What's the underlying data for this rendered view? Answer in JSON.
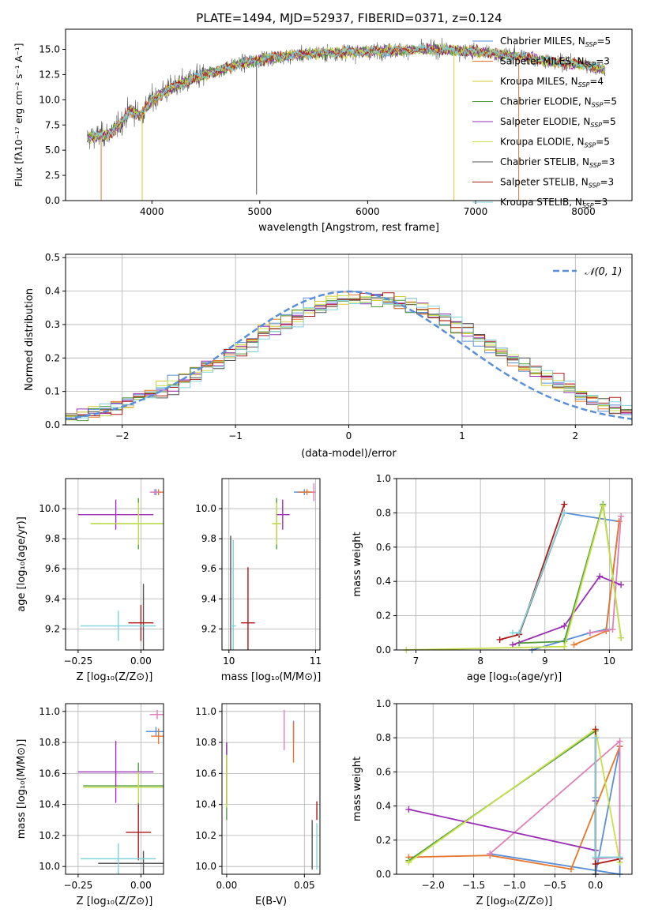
{
  "title": "PLATE=1494, MJD=52937, FIBERID=0371, z=0.124",
  "colors": {
    "chabrier_miles": "#5a8fd8",
    "salpeter_miles": "#e8762d",
    "kroupa_miles": "#d6c92c",
    "chabrier_elodie": "#4f9a3c",
    "salpeter_elodie": "#9a2fb5",
    "kroupa_elodie": "#c8e04a",
    "chabrier_stelib": "#555555",
    "salpeter_stelib": "#b01818",
    "kroupa_stelib": "#7fd3da",
    "pink": "#e080b8",
    "gaussian": "#5a8fd8"
  },
  "chart_data": [
    {
      "id": "spectrum",
      "type": "line",
      "xlabel": "wavelength [Angstrom, rest frame]",
      "ylabel": "Flux [fλ10⁻¹⁷ erg cm⁻² s⁻¹ A⁻¹]",
      "xlim": [
        3200,
        8450
      ],
      "ylim": [
        0,
        17
      ],
      "xticks": [
        "4000",
        "5000",
        "6000",
        "7000",
        "8000"
      ],
      "yticks": [
        "0.0",
        "2.5",
        "5.0",
        "7.5",
        "10.0",
        "12.5",
        "15.0"
      ],
      "legend_position": "right",
      "legend": [
        {
          "label": "Chabrier MILES, N",
          "sub": "SSP",
          "suffix": "=5",
          "color": "chabrier_miles"
        },
        {
          "label": "Salpeter MILES, N",
          "sub": "SSP",
          "suffix": "=3",
          "color": "salpeter_miles"
        },
        {
          "label": "Kroupa MILES, N",
          "sub": "SSP",
          "suffix": "=4",
          "color": "kroupa_miles"
        },
        {
          "label": "Chabrier ELODIE, N",
          "sub": "SSP",
          "suffix": "=5",
          "color": "chabrier_elodie"
        },
        {
          "label": "Salpeter ELODIE, N",
          "sub": "SSP",
          "suffix": "=5",
          "color": "salpeter_elodie"
        },
        {
          "label": "Kroupa ELODIE, N",
          "sub": "SSP",
          "suffix": "=5",
          "color": "kroupa_elodie"
        },
        {
          "label": "Chabrier STELIB, N",
          "sub": "SSP",
          "suffix": "=3",
          "color": "chabrier_stelib"
        },
        {
          "label": "Salpeter STELIB, N",
          "sub": "SSP",
          "suffix": "=3",
          "color": "salpeter_stelib"
        },
        {
          "label": "Kroupa STELIB, N",
          "sub": "SSP",
          "suffix": "=3",
          "color": "kroupa_stelib"
        }
      ],
      "continuum": [
        [
          3400,
          6.2
        ],
        [
          3600,
          6.6
        ],
        [
          3700,
          7.5
        ],
        [
          3800,
          9.0
        ],
        [
          3900,
          8.5
        ],
        [
          4000,
          10.0
        ],
        [
          4200,
          11.3
        ],
        [
          4500,
          12.5
        ],
        [
          4800,
          13.5
        ],
        [
          5000,
          14.0
        ],
        [
          5200,
          14.3
        ],
        [
          5500,
          14.6
        ],
        [
          5800,
          14.7
        ],
        [
          6000,
          14.8
        ],
        [
          6300,
          14.9
        ],
        [
          6600,
          15.0
        ],
        [
          7000,
          14.8
        ],
        [
          7400,
          14.3
        ],
        [
          7700,
          13.8
        ],
        [
          8000,
          13.5
        ],
        [
          8200,
          13.0
        ]
      ],
      "spikes": [
        {
          "x": 3530,
          "y": 0.0,
          "color": "salpeter_miles"
        },
        {
          "x": 3910,
          "y": 0.0,
          "color": "kroupa_miles"
        },
        {
          "x": 4970,
          "y": 0.6,
          "color": "chabrier_stelib"
        },
        {
          "x": 6800,
          "y": 0.0,
          "color": "kroupa_miles"
        },
        {
          "x": 7400,
          "y": 0.0,
          "color": "salpeter_miles"
        }
      ]
    },
    {
      "id": "residuals",
      "type": "area",
      "xlabel": "(data-model)/error",
      "ylabel": "Normed distribution",
      "xlim": [
        -2.5,
        2.5
      ],
      "ylim": [
        0,
        0.51
      ],
      "grid": true,
      "xticks": [
        "−2",
        "−1",
        "0",
        "1",
        "2"
      ],
      "yticks": [
        "0.0",
        "0.1",
        "0.2",
        "0.3",
        "0.4",
        "0.5"
      ],
      "legend_position": "top-right",
      "legend_label": "𝒩(0, 1)",
      "series_colors": [
        "chabrier_miles",
        "salpeter_miles",
        "kroupa_miles",
        "chabrier_elodie",
        "salpeter_elodie",
        "kroupa_elodie",
        "chabrier_stelib",
        "salpeter_stelib",
        "kroupa_stelib"
      ]
    },
    {
      "id": "z_age",
      "type": "scatter",
      "xlabel": "Z [log₁₀(Z/Z⊙)]",
      "ylabel": "age  [log₁₀(age/yr)]",
      "xlim": [
        -0.3,
        0.09
      ],
      "ylim": [
        9.06,
        10.2
      ],
      "grid": true,
      "xticks": [
        -0.25,
        0.0
      ],
      "xtick_labels": [
        "−0.25",
        "0.00"
      ],
      "yticks": [
        9.2,
        9.4,
        9.6,
        9.8,
        10.0
      ],
      "ytick_labels": [
        "9.2",
        "9.4",
        "9.6",
        "9.8",
        "10.0"
      ],
      "points": [
        {
          "x": 0.06,
          "y": 10.11,
          "dx": 0.02,
          "dy": 0.02,
          "color": "chabrier_miles"
        },
        {
          "x": 0.07,
          "y": 10.11,
          "dx": 0.02,
          "dy": 0.02,
          "color": "salpeter_miles"
        },
        {
          "x": 0.055,
          "y": 10.11,
          "dx": 0.02,
          "dy": 0.02,
          "color": "pink"
        },
        {
          "x": -0.01,
          "y": 9.9,
          "dx": 0.19,
          "dy": 0.17,
          "color": "chabrier_elodie"
        },
        {
          "x": -0.1,
          "y": 9.96,
          "dx": 0.15,
          "dy": 0.1,
          "color": "salpeter_elodie"
        },
        {
          "x": -0.01,
          "y": 9.9,
          "dx": 0.19,
          "dy": 0.14,
          "color": "kroupa_elodie"
        },
        {
          "x": 0.01,
          "y": 9.2,
          "dx": 0.0,
          "dy": 0.3,
          "color": "chabrier_stelib"
        },
        {
          "x": -0.0,
          "y": 9.24,
          "dx": 0.05,
          "dy": 0.12,
          "color": "salpeter_stelib"
        },
        {
          "x": -0.09,
          "y": 9.22,
          "dx": 0.15,
          "dy": 0.1,
          "color": "kroupa_stelib"
        }
      ]
    },
    {
      "id": "mass_age",
      "type": "scatter",
      "xlabel": "mass [log₁₀(M/M⊙)]",
      "ylabel": "",
      "xlim": [
        9.92,
        11.05
      ],
      "ylim": [
        9.06,
        10.2
      ],
      "grid": true,
      "xticks": [
        10,
        11
      ],
      "xtick_labels": [
        "10",
        "11"
      ],
      "yticks": [
        9.2,
        9.4,
        9.6,
        9.8,
        10.0
      ],
      "ytick_labels": [
        "9.2",
        "9.4",
        "9.6",
        "9.8",
        "10.0"
      ],
      "points": [
        {
          "x": 10.87,
          "y": 10.11,
          "dx": 0.12,
          "dy": 0.02,
          "color": "chabrier_miles"
        },
        {
          "x": 10.9,
          "y": 10.11,
          "dx": 0.1,
          "dy": 0.02,
          "color": "salpeter_miles"
        },
        {
          "x": 10.98,
          "y": 10.11,
          "dx": 0.02,
          "dy": 0.06,
          "color": "pink"
        },
        {
          "x": 10.55,
          "y": 9.9,
          "dx": 0.05,
          "dy": 0.17,
          "color": "chabrier_elodie"
        },
        {
          "x": 10.62,
          "y": 9.96,
          "dx": 0.08,
          "dy": 0.1,
          "color": "salpeter_elodie"
        },
        {
          "x": 10.55,
          "y": 9.9,
          "dx": 0.05,
          "dy": 0.14,
          "color": "kroupa_elodie"
        },
        {
          "x": 10.02,
          "y": 9.22,
          "dx": 0.0,
          "dy": 0.6,
          "color": "chabrier_stelib"
        },
        {
          "x": 10.22,
          "y": 9.24,
          "dx": 0.08,
          "dy": 0.37,
          "color": "salpeter_stelib"
        },
        {
          "x": 10.05,
          "y": 9.22,
          "dx": 0.03,
          "dy": 0.57,
          "color": "kroupa_stelib"
        }
      ]
    },
    {
      "id": "weight_age",
      "type": "line",
      "xlabel": "age  [log₁₀(age/yr)]",
      "ylabel": "mass weight",
      "xlim": [
        6.7,
        10.35
      ],
      "ylim": [
        0,
        1
      ],
      "grid": true,
      "xticks": [
        7,
        8,
        9,
        10
      ],
      "xtick_labels": [
        "7",
        "8",
        "9",
        "10"
      ],
      "yticks": [
        0,
        0.2,
        0.4,
        0.6,
        0.8,
        1.0
      ],
      "ytick_labels": [
        "0.0",
        "0.2",
        "0.4",
        "0.6",
        "0.8",
        "1.0"
      ],
      "series": [
        {
          "color": "chabrier_miles",
          "x": [
            8.8,
            9.7,
            9.95,
            10.15,
            9.3
          ],
          "y": [
            0.0,
            0.1,
            0.12,
            0.75,
            0.8
          ]
        },
        {
          "color": "salpeter_miles",
          "x": [
            9.45,
            9.95,
            10.15
          ],
          "y": [
            0.03,
            0.11,
            0.75
          ]
        },
        {
          "color": "pink",
          "x": [
            9.7,
            10.05,
            10.18
          ],
          "y": [
            0.1,
            0.12,
            0.78
          ]
        },
        {
          "color": "chabrier_elodie",
          "x": [
            8.6,
            9.3,
            9.9,
            10.18
          ],
          "y": [
            0.04,
            0.05,
            0.85,
            0.07
          ]
        },
        {
          "color": "salpeter_elodie",
          "x": [
            8.5,
            9.3,
            9.85,
            10.18
          ],
          "y": [
            0.03,
            0.14,
            0.43,
            0.38
          ]
        },
        {
          "color": "kroupa_elodie",
          "x": [
            6.85,
            9.3,
            9.9,
            10.18
          ],
          "y": [
            0.0,
            0.02,
            0.84,
            0.07
          ]
        },
        {
          "color": "chabrier_stelib",
          "x": [
            8.6,
            9.3
          ],
          "y": [
            0.09,
            0.8
          ]
        },
        {
          "color": "salpeter_stelib",
          "x": [
            8.3,
            8.6,
            9.3
          ],
          "y": [
            0.06,
            0.09,
            0.85
          ]
        },
        {
          "color": "kroupa_stelib",
          "x": [
            8.5,
            8.6,
            9.3
          ],
          "y": [
            0.1,
            0.1,
            0.8
          ]
        }
      ]
    },
    {
      "id": "z_mass",
      "type": "scatter",
      "xlabel": "Z [log₁₀(Z/Z⊙)]",
      "ylabel": "mass [log₁₀(M/M⊙)]",
      "xlim": [
        -0.3,
        0.09
      ],
      "ylim": [
        9.95,
        11.05
      ],
      "grid": true,
      "xticks": [
        -0.25,
        0.0
      ],
      "xtick_labels": [
        "−0.25",
        "0.00"
      ],
      "yticks": [
        10.0,
        10.2,
        10.4,
        10.6,
        10.8,
        11.0
      ],
      "ytick_labels": [
        "10.0",
        "10.2",
        "10.4",
        "10.6",
        "10.8",
        "11.0"
      ],
      "points": [
        {
          "x": 0.06,
          "y": 10.87,
          "dx": 0.04,
          "dy": 0.03,
          "color": "chabrier_miles"
        },
        {
          "x": 0.07,
          "y": 10.84,
          "dx": 0.03,
          "dy": 0.05,
          "color": "salpeter_miles"
        },
        {
          "x": 0.065,
          "y": 10.98,
          "dx": 0.03,
          "dy": 0.03,
          "color": "pink"
        },
        {
          "x": -0.01,
          "y": 10.52,
          "dx": 0.22,
          "dy": 0.15,
          "color": "chabrier_elodie"
        },
        {
          "x": -0.1,
          "y": 10.61,
          "dx": 0.15,
          "dy": 0.2,
          "color": "salpeter_elodie"
        },
        {
          "x": -0.01,
          "y": 10.51,
          "dx": 0.22,
          "dy": 0.1,
          "color": "kroupa_elodie"
        },
        {
          "x": 0.01,
          "y": 10.02,
          "dx": 0.18,
          "dy": 0.08,
          "color": "chabrier_stelib"
        },
        {
          "x": -0.01,
          "y": 10.22,
          "dx": 0.05,
          "dy": 0.18,
          "color": "salpeter_stelib"
        },
        {
          "x": -0.09,
          "y": 10.05,
          "dx": 0.15,
          "dy": 0.1,
          "color": "kroupa_stelib"
        }
      ]
    },
    {
      "id": "ebv_mass",
      "type": "scatter",
      "xlabel": "E(B-V)",
      "ylabel": "",
      "xlim": [
        -0.003,
        0.06
      ],
      "ylim": [
        9.95,
        11.05
      ],
      "grid": true,
      "xticks": [
        0.0,
        0.05
      ],
      "xtick_labels": [
        "0.00",
        "0.05"
      ],
      "yticks": [
        10.0,
        10.2,
        10.4,
        10.6,
        10.8,
        11.0
      ],
      "ytick_labels": [
        "10.0",
        "10.2",
        "10.4",
        "10.6",
        "10.8",
        "11.0"
      ],
      "points": [
        {
          "x": 0.043,
          "y": 10.87,
          "dx": 0,
          "dy": 0.07,
          "color": "chabrier_miles"
        },
        {
          "x": 0.043,
          "y": 10.8,
          "dx": 0,
          "dy": 0.13,
          "color": "salpeter_miles"
        },
        {
          "x": 0.037,
          "y": 10.88,
          "dx": 0,
          "dy": 0.13,
          "color": "pink"
        },
        {
          "x": 0.0,
          "y": 10.55,
          "dx": 0,
          "dy": 0.25,
          "color": "chabrier_elodie"
        },
        {
          "x": 0.0,
          "y": 10.6,
          "dx": 0,
          "dy": 0.2,
          "color": "salpeter_elodie"
        },
        {
          "x": 0.0,
          "y": 10.55,
          "dx": 0,
          "dy": 0.17,
          "color": "kroupa_elodie"
        },
        {
          "x": 0.055,
          "y": 10.14,
          "dx": 0,
          "dy": 0.16,
          "color": "chabrier_stelib"
        },
        {
          "x": 0.058,
          "y": 10.36,
          "dx": 0,
          "dy": 0.06,
          "color": "salpeter_stelib"
        },
        {
          "x": 0.058,
          "y": 10.13,
          "dx": 0,
          "dy": 0.15,
          "color": "kroupa_stelib"
        }
      ]
    },
    {
      "id": "weight_z",
      "type": "line",
      "xlabel": "Z [log₁₀(Z/Z⊙)]",
      "ylabel": "mass weight",
      "xlim": [
        -2.45,
        0.45
      ],
      "ylim": [
        0,
        1
      ],
      "grid": true,
      "xticks": [
        -2.0,
        -1.5,
        -1.0,
        -0.5,
        0.0
      ],
      "xtick_labels": [
        "−2.0",
        "−1.5",
        "−1.0",
        "−0.5",
        "0.0"
      ],
      "yticks": [
        0,
        0.2,
        0.4,
        0.6,
        0.8,
        1.0
      ],
      "ytick_labels": [
        "0.0",
        "0.2",
        "0.4",
        "0.6",
        "0.8",
        "1.0"
      ],
      "series": [
        {
          "color": "chabrier_miles",
          "x": [
            0.0,
            0.0,
            0.3,
            0.3,
            -1.3
          ],
          "y": [
            0.45,
            0.0,
            0.75,
            0.0,
            0.12
          ]
        },
        {
          "color": "salpeter_miles",
          "x": [
            -2.3,
            -1.3,
            -0.3,
            0.3
          ],
          "y": [
            0.1,
            0.11,
            0.03,
            0.75
          ]
        },
        {
          "color": "pink",
          "x": [
            -1.3,
            0.3,
            0.3,
            0.0
          ],
          "y": [
            0.12,
            0.78,
            0.1,
            0.09
          ]
        },
        {
          "color": "chabrier_elodie",
          "x": [
            -2.3,
            0.0,
            0.0
          ],
          "y": [
            0.08,
            0.84,
            0.06
          ]
        },
        {
          "color": "salpeter_elodie",
          "x": [
            -2.3,
            0.0,
            0.0
          ],
          "y": [
            0.38,
            0.14,
            0.43
          ]
        },
        {
          "color": "kroupa_elodie",
          "x": [
            -2.3,
            0.0,
            0.3
          ],
          "y": [
            0.07,
            0.85,
            0.07
          ]
        },
        {
          "color": "chabrier_stelib",
          "x": [
            0.0,
            0.0
          ],
          "y": [
            0.0,
            0.8
          ]
        },
        {
          "color": "salpeter_stelib",
          "x": [
            0.0,
            0.0,
            0.3
          ],
          "y": [
            0.85,
            0.06,
            0.09
          ]
        },
        {
          "color": "kroupa_stelib",
          "x": [
            0.0,
            0.0,
            0.3
          ],
          "y": [
            0.8,
            0.1,
            0.1
          ]
        }
      ]
    }
  ]
}
